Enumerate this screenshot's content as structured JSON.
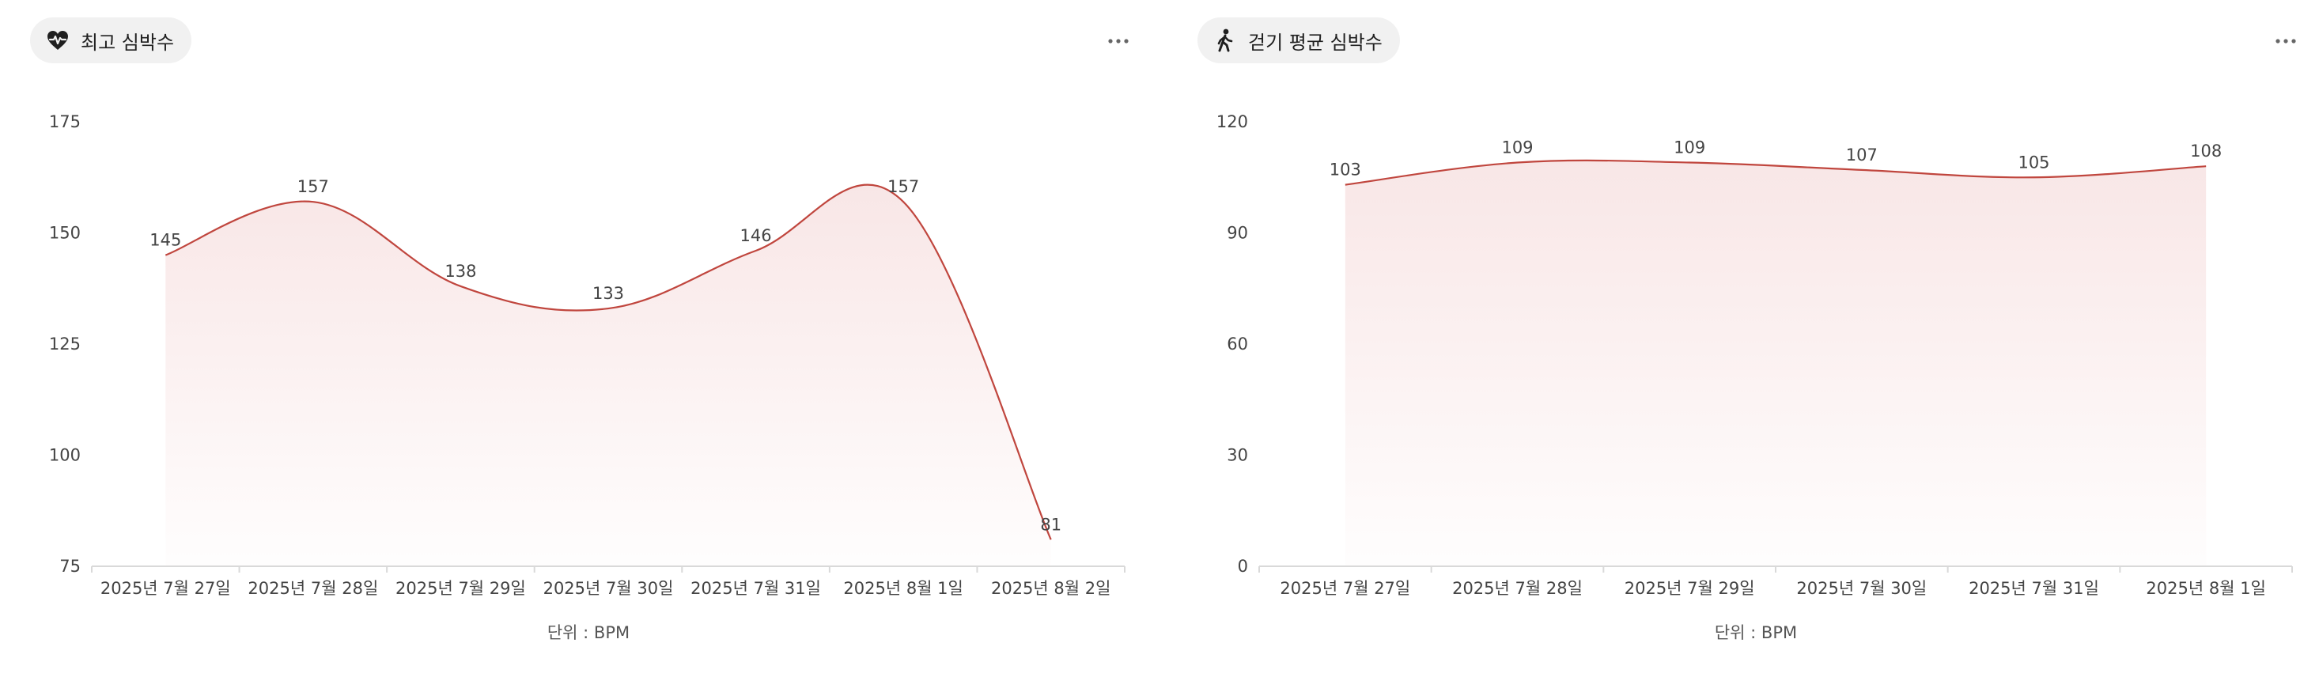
{
  "colors": {
    "line": "#c0463e",
    "fill_top": "#f6dede",
    "axis": "#d9d9d9",
    "pill_bg": "#f1f1f1"
  },
  "more_icon": "more-horizontal-icon",
  "panels": [
    {
      "title": "최고 심박수",
      "icon": "heart-pulse-icon",
      "unit": "단위 : BPM"
    },
    {
      "title": "걷기 평균 심박수",
      "icon": "walking-person-icon",
      "unit": "단위 : BPM"
    }
  ],
  "chart_data": [
    {
      "type": "area",
      "title": "최고 심박수",
      "xlabel": "단위 : BPM",
      "ylabel": "",
      "categories": [
        "2025년 7월 27일",
        "2025년 7월 28일",
        "2025년 7월 29일",
        "2025년 7월 30일",
        "2025년 7월 31일",
        "2025년 8월 1일",
        "2025년 8월 2일"
      ],
      "values": [
        145,
        157,
        138,
        133,
        146,
        157,
        81
      ],
      "ylim": [
        75,
        175
      ],
      "yticks": [
        75,
        100,
        125,
        150,
        175
      ],
      "smooth": true,
      "data_labels": true,
      "grid": false,
      "legend": "none"
    },
    {
      "type": "area",
      "title": "걷기 평균 심박수",
      "xlabel": "단위 : BPM",
      "ylabel": "",
      "categories": [
        "2025년 7월 27일",
        "2025년 7월 28일",
        "2025년 7월 29일",
        "2025년 7월 30일",
        "2025년 7월 31일",
        "2025년 8월 1일"
      ],
      "values": [
        103,
        109,
        109,
        107,
        105,
        108
      ],
      "ylim": [
        0,
        120
      ],
      "yticks": [
        0,
        30,
        60,
        90,
        120
      ],
      "smooth": true,
      "data_labels": true,
      "grid": false,
      "legend": "none"
    }
  ]
}
